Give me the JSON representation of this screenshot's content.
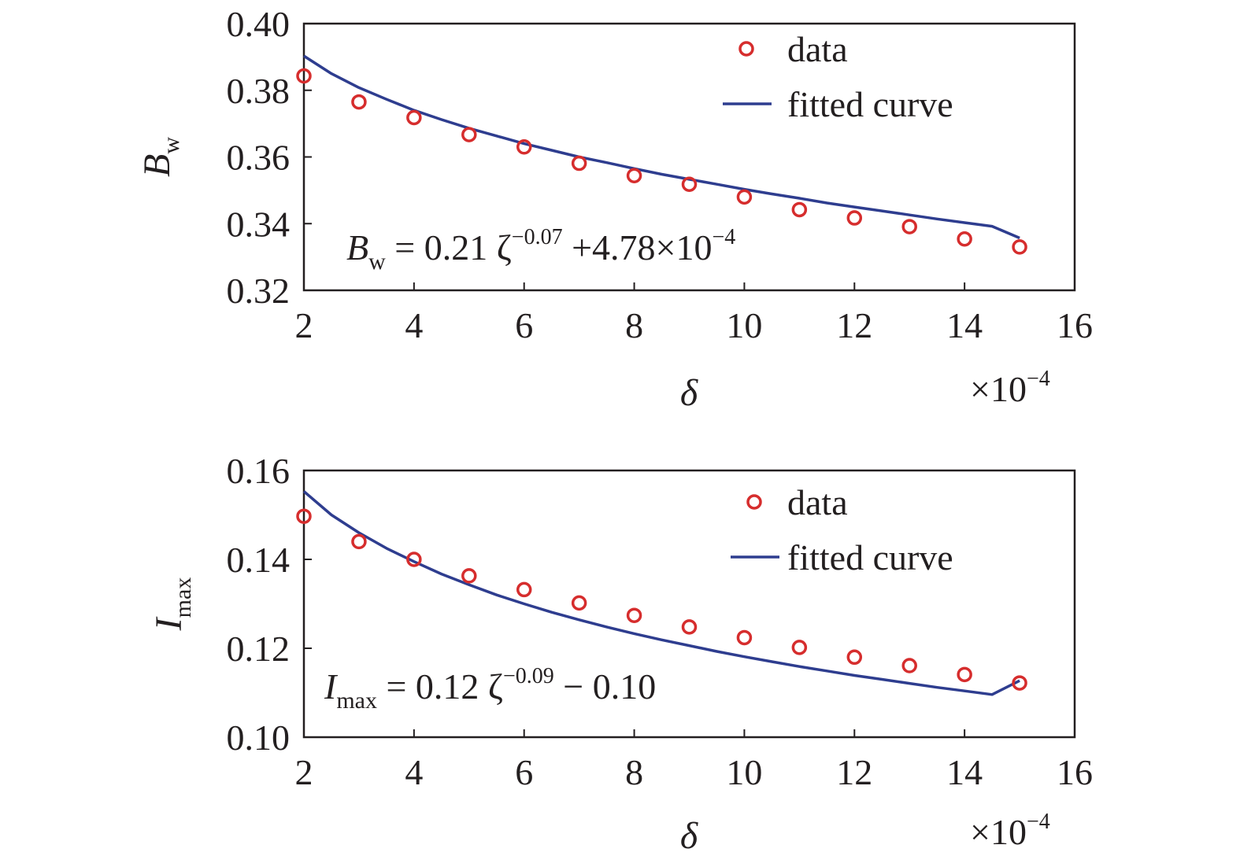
{
  "colors": {
    "data_marker": "#d62d2d",
    "fit_line": "#2e3d8f",
    "axis": "#231f20"
  },
  "chart_data": [
    {
      "type": "scatter",
      "panel": "top",
      "xlabel": "δ",
      "x_multiplier": "×10",
      "x_multiplier_exp": "−4",
      "ylabel_main": "B",
      "ylabel_sub": "w",
      "xlim": [
        2,
        16
      ],
      "ylim": [
        0.32,
        0.4
      ],
      "x_ticks": [
        2,
        4,
        6,
        8,
        10,
        12,
        14,
        16
      ],
      "x_tick_labels": [
        "2",
        "4",
        "6",
        "8",
        "10",
        "12",
        "14",
        "16"
      ],
      "y_ticks": [
        0.32,
        0.34,
        0.36,
        0.38,
        0.4
      ],
      "y_tick_labels": [
        "0.32",
        "0.34",
        "0.36",
        "0.38",
        "0.40"
      ],
      "legend": {
        "position": "top-right",
        "data_label": "data",
        "fit_label": "fitted curve"
      },
      "equation": {
        "lhs": "B",
        "lhs_sub": "w",
        "eq": " = 0.21 ζ",
        "exp1": "−0.07",
        "tail": " +4.78×10",
        "exp2": "−4"
      },
      "series": [
        {
          "name": "data",
          "kind": "marker",
          "x": [
            2,
            3,
            4,
            5,
            6,
            7,
            8,
            9,
            10,
            11,
            12,
            13,
            14,
            15
          ],
          "y": [
            0.3843,
            0.3765,
            0.3718,
            0.3667,
            0.363,
            0.3581,
            0.3544,
            0.3518,
            0.348,
            0.3442,
            0.3417,
            0.3391,
            0.3354,
            0.333
          ]
        },
        {
          "name": "fitted curve",
          "kind": "line",
          "x": [
            2,
            2.5,
            3,
            3.5,
            4,
            4.5,
            5,
            5.5,
            6,
            6.5,
            7,
            7.5,
            8,
            8.5,
            9,
            9.5,
            10,
            10.5,
            11,
            11.5,
            12,
            12.5,
            13,
            13.5,
            14,
            14.5,
            15
          ],
          "y": [
            0.3903,
            0.385,
            0.3808,
            0.3773,
            0.374,
            0.3712,
            0.3686,
            0.3663,
            0.364,
            0.362,
            0.36,
            0.3583,
            0.3565,
            0.3548,
            0.3533,
            0.3518,
            0.3503,
            0.3489,
            0.3476,
            0.3462,
            0.345,
            0.3438,
            0.3426,
            0.3414,
            0.3403,
            0.3392,
            0.3357
          ]
        }
      ]
    },
    {
      "type": "scatter",
      "panel": "bottom",
      "xlabel": "δ",
      "x_multiplier": "×10",
      "x_multiplier_exp": "−4",
      "ylabel_main": "I",
      "ylabel_sub": "max",
      "xlim": [
        2,
        16
      ],
      "ylim": [
        0.1,
        0.16
      ],
      "x_ticks": [
        2,
        4,
        6,
        8,
        10,
        12,
        14,
        16
      ],
      "x_tick_labels": [
        "2",
        "4",
        "6",
        "8",
        "10",
        "12",
        "14",
        "16"
      ],
      "y_ticks": [
        0.1,
        0.12,
        0.14,
        0.16
      ],
      "y_tick_labels": [
        "0.10",
        "0.12",
        "0.14",
        "0.16"
      ],
      "legend": {
        "position": "top-right",
        "data_label": "data",
        "fit_label": "fitted curve"
      },
      "equation": {
        "lhs": "I",
        "lhs_sub": "max",
        "eq": " = 0.12 ζ",
        "exp1": "−0.09",
        "tail": "  − 0.10",
        "exp2": ""
      },
      "series": [
        {
          "name": "data",
          "kind": "marker",
          "x": [
            2,
            3,
            4,
            5,
            6,
            7,
            8,
            9,
            10,
            11,
            12,
            13,
            14,
            15
          ],
          "y": [
            0.1497,
            0.144,
            0.14,
            0.1363,
            0.1332,
            0.1302,
            0.1274,
            0.1248,
            0.1224,
            0.1202,
            0.118,
            0.1161,
            0.1141,
            0.1122
          ]
        },
        {
          "name": "fitted curve",
          "kind": "line",
          "x": [
            2,
            2.5,
            3,
            3.5,
            4,
            4.5,
            5,
            5.5,
            6,
            6.5,
            7,
            7.5,
            8,
            8.5,
            9,
            9.5,
            10,
            10.5,
            11,
            11.5,
            12,
            12.5,
            13,
            13.5,
            14,
            14.5,
            15
          ],
          "y": [
            0.1553,
            0.15,
            0.146,
            0.1425,
            0.1395,
            0.1367,
            0.1343,
            0.132,
            0.13,
            0.1281,
            0.1264,
            0.1248,
            0.1233,
            0.1219,
            0.1206,
            0.1193,
            0.1181,
            0.117,
            0.1159,
            0.1149,
            0.1139,
            0.113,
            0.1121,
            0.1112,
            0.1104,
            0.1096,
            0.1127
          ]
        }
      ]
    }
  ]
}
